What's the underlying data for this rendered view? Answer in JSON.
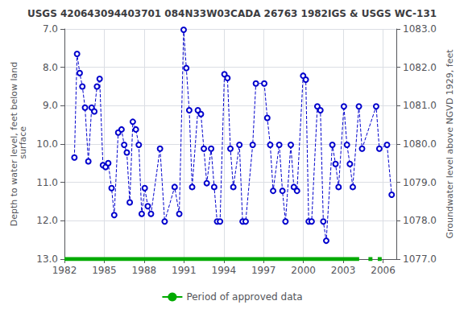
{
  "chart_data": {
    "type": "line",
    "title": "USGS 420643094403701 084N33W03CADA 26763 1982IGS & USGS WC-131",
    "ylabel": "Depth to water level, feet below land\n surface",
    "y2label": "Groundwater level above NGVD 1929, feet",
    "x": [
      1982.75,
      1982.95,
      1983.15,
      1983.35,
      1983.55,
      1983.8,
      1984.05,
      1984.25,
      1984.45,
      1984.65,
      1984.9,
      1985.1,
      1985.3,
      1985.55,
      1985.75,
      1986.05,
      1986.3,
      1986.5,
      1986.7,
      1986.92,
      1987.15,
      1987.38,
      1987.6,
      1987.82,
      1988.05,
      1988.28,
      1988.52,
      1989.2,
      1989.55,
      1990.3,
      1990.65,
      1990.98,
      1991.18,
      1991.4,
      1991.62,
      1992.05,
      1992.28,
      1992.5,
      1992.72,
      1993.05,
      1993.28,
      1993.5,
      1993.72,
      1994.05,
      1994.28,
      1994.5,
      1994.72,
      1995.18,
      1995.42,
      1995.65,
      1996.18,
      1996.42,
      1997.05,
      1997.28,
      1997.5,
      1997.72,
      1998.18,
      1998.42,
      1998.65,
      1999.05,
      1999.28,
      1999.52,
      1999.98,
      2000.18,
      2000.4,
      2000.62,
      2001.05,
      2001.28,
      2001.5,
      2001.72,
      2002.18,
      2002.42,
      2002.65,
      2003.05,
      2003.28,
      2003.5,
      2003.72,
      2004.18,
      2004.42,
      2005.48,
      2005.72,
      2006.3,
      2006.65
    ],
    "series": [
      {
        "color": "#0000cc",
        "marker": "circle",
        "line_style": "dashed",
        "values": [
          10.35,
          7.65,
          8.15,
          8.5,
          9.05,
          10.45,
          9.05,
          9.15,
          8.5,
          8.3,
          10.55,
          10.6,
          10.5,
          11.15,
          11.85,
          9.7,
          9.62,
          10.02,
          10.22,
          11.52,
          9.42,
          9.62,
          10.02,
          11.82,
          11.15,
          11.62,
          11.82,
          10.12,
          12.02,
          11.12,
          11.82,
          7.02,
          8.02,
          9.12,
          11.12,
          9.12,
          9.22,
          10.12,
          11.02,
          10.12,
          11.12,
          12.02,
          12.02,
          8.18,
          8.28,
          10.12,
          11.12,
          10.02,
          12.02,
          12.02,
          10.02,
          8.42,
          8.42,
          9.32,
          10.02,
          11.22,
          10.02,
          11.22,
          12.02,
          10.02,
          11.12,
          11.22,
          8.22,
          8.32,
          12.02,
          12.02,
          9.02,
          9.12,
          12.02,
          12.52,
          10.02,
          10.52,
          11.12,
          9.02,
          10.02,
          10.52,
          11.12,
          9.02,
          10.12,
          9.02,
          10.12,
          10.02,
          11.32
        ]
      }
    ],
    "spans": [
      {
        "name": "Period of approved data",
        "color": "#00aa00",
        "y": 13.0,
        "ranges": [
          [
            1982.0,
            2004.2
          ],
          [
            2004.9,
            2005.2
          ],
          [
            2005.6,
            2005.9
          ]
        ]
      }
    ],
    "xlim": [
      1982,
      2007
    ],
    "xticks": [
      1982,
      1985,
      1988,
      1991,
      1994,
      1997,
      2000,
      2003,
      2006
    ],
    "ylim": [
      13.0,
      7.0
    ],
    "yticks": [
      {
        "value": 7.0,
        "label": "7.0"
      },
      {
        "value": 8.0,
        "label": "8.0"
      },
      {
        "value": 9.0,
        "label": "9.0"
      },
      {
        "value": 10.0,
        "label": "10.0"
      },
      {
        "value": 11.0,
        "label": "11.0"
      },
      {
        "value": 12.0,
        "label": "12.0"
      },
      {
        "value": 13.0,
        "label": "13.0"
      }
    ],
    "y2lim": [
      1077.0,
      1083.0
    ],
    "y2ticks": [
      {
        "value": 1077.0,
        "label": "1077.0"
      },
      {
        "value": 1078.0,
        "label": "1078.0"
      },
      {
        "value": 1079.0,
        "label": "1079.0"
      },
      {
        "value": 1080.0,
        "label": "1080.0"
      },
      {
        "value": 1081.0,
        "label": "1081.0"
      },
      {
        "value": 1082.0,
        "label": "1082.0"
      },
      {
        "value": 1083.0,
        "label": "1083.0"
      }
    ],
    "grid": true,
    "legend": "bottom"
  }
}
